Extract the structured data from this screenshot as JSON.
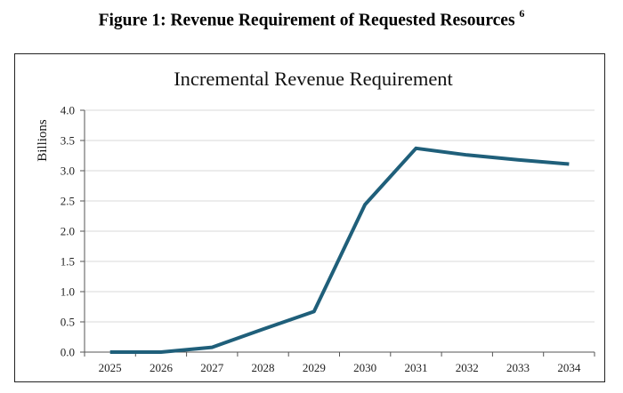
{
  "figure": {
    "caption": "Figure 1: Revenue Requirement of Requested Resources",
    "footnote_marker": "6"
  },
  "chart_data": {
    "type": "line",
    "title": "Incremental Revenue Requirement",
    "xlabel": "",
    "ylabel": "Billions",
    "categories": [
      "2025",
      "2026",
      "2027",
      "2028",
      "2029",
      "2030",
      "2031",
      "2032",
      "2033",
      "2034"
    ],
    "series": [
      {
        "name": "Incremental Revenue Requirement",
        "values": [
          0.0,
          0.0,
          0.08,
          0.38,
          0.67,
          2.44,
          3.37,
          3.26,
          3.18,
          3.11
        ]
      }
    ],
    "ylim": [
      0,
      4.0
    ],
    "yticks": [
      "0.0",
      "0.5",
      "1.0",
      "1.5",
      "2.0",
      "2.5",
      "3.0",
      "3.5",
      "4.0"
    ],
    "grid": true,
    "line_color": "#1f5f7a"
  }
}
